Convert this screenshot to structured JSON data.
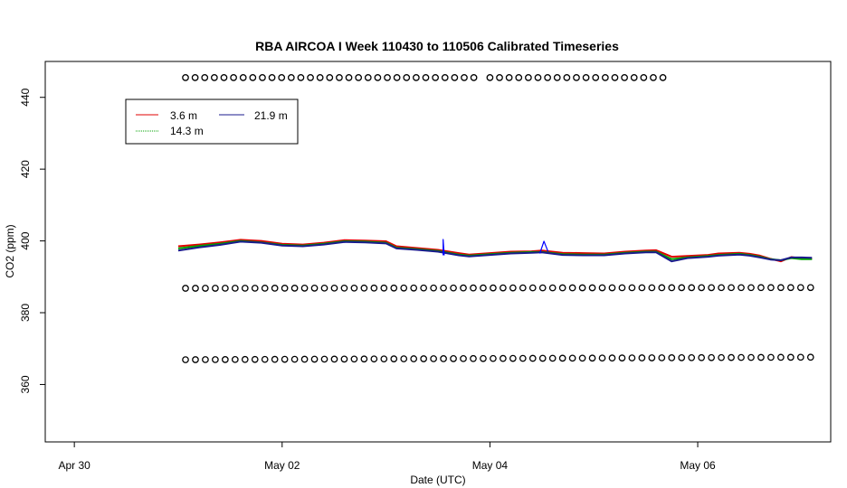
{
  "chart_data": {
    "type": "line",
    "title": "RBA AIRCOA I  Week 110430 to 110506  Calibrated Timeseries",
    "xlabel": "Date (UTC)",
    "ylabel": "CO2 (ppm)",
    "x_ticks": [
      {
        "label": "Apr 30",
        "day": 0
      },
      {
        "label": "May 02",
        "day": 2
      },
      {
        "label": "May 04",
        "day": 4
      },
      {
        "label": "May 06",
        "day": 6
      }
    ],
    "y_ticks": [
      360,
      380,
      400,
      420,
      440
    ],
    "xlim": [
      -0.28,
      7.28
    ],
    "ylim": [
      344,
      450
    ],
    "legend": {
      "position": "top-left",
      "entries": [
        {
          "label": "3.6 m",
          "color": "#e00000"
        },
        {
          "label": "14.3 m",
          "color": "#00a000"
        },
        {
          "label": "21.9 m",
          "color": "#1a1a8c"
        }
      ]
    },
    "series": [
      {
        "name": "3.6 m",
        "color": "#e00000",
        "points": [
          [
            1.0,
            398.5
          ],
          [
            1.2,
            399.0
          ],
          [
            1.4,
            399.6
          ],
          [
            1.6,
            400.3
          ],
          [
            1.8,
            400.0
          ],
          [
            2.0,
            399.2
          ],
          [
            2.2,
            399.0
          ],
          [
            2.4,
            399.5
          ],
          [
            2.6,
            400.2
          ],
          [
            2.8,
            400.1
          ],
          [
            3.0,
            399.9
          ],
          [
            3.1,
            398.5
          ],
          [
            3.3,
            398.0
          ],
          [
            3.5,
            397.5
          ],
          [
            3.7,
            396.6
          ],
          [
            3.8,
            396.2
          ],
          [
            4.0,
            396.6
          ],
          [
            4.2,
            397.0
          ],
          [
            4.4,
            397.1
          ],
          [
            4.5,
            397.3
          ],
          [
            4.7,
            396.7
          ],
          [
            4.9,
            396.6
          ],
          [
            5.1,
            396.5
          ],
          [
            5.3,
            397.0
          ],
          [
            5.5,
            397.3
          ],
          [
            5.6,
            397.4
          ],
          [
            5.75,
            395.6
          ],
          [
            5.9,
            395.8
          ],
          [
            6.1,
            396.1
          ],
          [
            6.2,
            396.5
          ],
          [
            6.4,
            396.7
          ],
          [
            6.5,
            396.4
          ],
          [
            6.6,
            395.9
          ],
          [
            6.7,
            395.0
          ],
          [
            6.8,
            394.3
          ],
          [
            6.9,
            395.5
          ],
          [
            7.0,
            395.1
          ],
          [
            7.1,
            395.0
          ]
        ]
      },
      {
        "name": "14.3 m",
        "color": "#00a000",
        "points": [
          [
            1.0,
            397.9
          ],
          [
            1.2,
            398.6
          ],
          [
            1.4,
            399.2
          ],
          [
            1.6,
            400.0
          ],
          [
            1.8,
            399.6
          ],
          [
            2.0,
            398.9
          ],
          [
            2.2,
            398.7
          ],
          [
            2.4,
            399.2
          ],
          [
            2.6,
            399.9
          ],
          [
            2.8,
            399.8
          ],
          [
            3.0,
            399.5
          ],
          [
            3.1,
            398.1
          ],
          [
            3.3,
            397.7
          ],
          [
            3.5,
            397.2
          ],
          [
            3.7,
            396.2
          ],
          [
            3.8,
            395.9
          ],
          [
            4.0,
            396.3
          ],
          [
            4.2,
            396.7
          ],
          [
            4.4,
            396.9
          ],
          [
            4.5,
            396.9
          ],
          [
            4.7,
            396.3
          ],
          [
            4.9,
            396.2
          ],
          [
            5.1,
            396.2
          ],
          [
            5.3,
            396.7
          ],
          [
            5.5,
            397.0
          ],
          [
            5.6,
            397.0
          ],
          [
            5.75,
            394.9
          ],
          [
            5.9,
            395.4
          ],
          [
            6.1,
            395.8
          ],
          [
            6.2,
            396.1
          ],
          [
            6.4,
            396.4
          ],
          [
            6.5,
            396.1
          ],
          [
            6.6,
            395.6
          ],
          [
            6.7,
            394.9
          ],
          [
            6.8,
            394.6
          ],
          [
            6.9,
            395.2
          ],
          [
            7.0,
            394.9
          ],
          [
            7.1,
            394.9
          ]
        ]
      },
      {
        "name": "21.9 m",
        "color": "#1a1a8c",
        "points": [
          [
            1.0,
            397.3
          ],
          [
            1.2,
            398.2
          ],
          [
            1.4,
            398.9
          ],
          [
            1.6,
            399.8
          ],
          [
            1.8,
            399.5
          ],
          [
            2.0,
            398.7
          ],
          [
            2.2,
            398.5
          ],
          [
            2.4,
            399.0
          ],
          [
            2.6,
            399.7
          ],
          [
            2.8,
            399.6
          ],
          [
            3.0,
            399.3
          ],
          [
            3.1,
            397.9
          ],
          [
            3.3,
            397.5
          ],
          [
            3.5,
            397.0
          ],
          [
            3.7,
            396.0
          ],
          [
            3.8,
            395.7
          ],
          [
            4.0,
            396.1
          ],
          [
            4.2,
            396.5
          ],
          [
            4.4,
            396.7
          ],
          [
            4.5,
            396.8
          ],
          [
            4.7,
            396.1
          ],
          [
            4.9,
            396.0
          ],
          [
            5.1,
            396.0
          ],
          [
            5.3,
            396.5
          ],
          [
            5.5,
            396.8
          ],
          [
            5.6,
            396.8
          ],
          [
            5.75,
            394.3
          ],
          [
            5.9,
            395.2
          ],
          [
            6.1,
            395.6
          ],
          [
            6.2,
            395.9
          ],
          [
            6.4,
            396.2
          ],
          [
            6.5,
            395.9
          ],
          [
            6.6,
            395.4
          ],
          [
            6.7,
            394.8
          ],
          [
            6.8,
            394.6
          ],
          [
            6.9,
            395.4
          ],
          [
            7.0,
            395.4
          ],
          [
            7.1,
            395.3
          ]
        ]
      },
      {
        "name": "spike",
        "color": "#0000ff",
        "points": [
          [
            3.55,
            396.0
          ],
          [
            3.55,
            400.4
          ],
          [
            3.56,
            396.0
          ]
        ]
      },
      {
        "name": "spike2",
        "color": "#0000ff",
        "points": [
          [
            4.48,
            396.5
          ],
          [
            4.52,
            399.9
          ],
          [
            4.56,
            397.0
          ]
        ]
      }
    ],
    "reference_series": [
      {
        "name": "upper-reference",
        "y": 445.5,
        "ranges": [
          [
            1.07,
            3.87
          ],
          [
            4.0,
            5.67
          ]
        ],
        "spacing": 0.0925,
        "marker": "open-circle"
      },
      {
        "name": "middle-reference",
        "y": 386.8,
        "y_end": 387.0,
        "ranges": [
          [
            1.07,
            7.11
          ]
        ],
        "spacing": 0.0955,
        "marker": "open-circle"
      },
      {
        "name": "lower-reference",
        "y": 366.9,
        "y_end": 367.6,
        "ranges": [
          [
            1.07,
            7.11
          ]
        ],
        "spacing": 0.0955,
        "marker": "open-circle"
      }
    ]
  }
}
